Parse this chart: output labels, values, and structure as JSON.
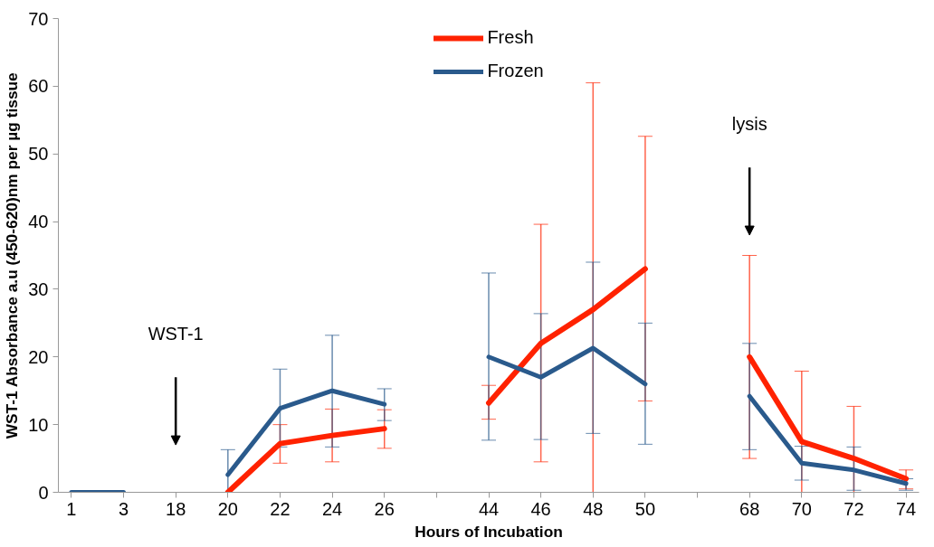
{
  "chart_data": {
    "type": "line",
    "xlabel": "Hours of Incubation",
    "ylabel": "WST-1 Absorbance a.u (450-620)nm per µg tissue",
    "categories": [
      "1",
      "3",
      "18",
      "20",
      "22",
      "24",
      "26",
      null,
      "44",
      "46",
      "48",
      "50",
      null,
      "68",
      "70",
      "72",
      "74"
    ],
    "series": [
      {
        "name": "Fresh",
        "color": "#ff2200",
        "values": [
          null,
          null,
          null,
          0,
          7.2,
          8.4,
          9.4,
          null,
          13.2,
          22,
          27,
          33,
          null,
          20,
          7.5,
          5,
          2
        ],
        "errors": [
          null,
          null,
          null,
          null,
          [
            4.3,
            10
          ],
          [
            4.5,
            12.3
          ],
          [
            6.5,
            12.2
          ],
          null,
          [
            10.8,
            15.8
          ],
          [
            4.5,
            39.6
          ],
          [
            0,
            60.5
          ],
          [
            13.5,
            52.6
          ],
          null,
          [
            5,
            35
          ],
          [
            0,
            17.9
          ],
          [
            0,
            12.7
          ],
          [
            0.5,
            3.3
          ]
        ]
      },
      {
        "name": "Frozen",
        "color": "#2a5a8c",
        "values": [
          0,
          0,
          null,
          2.6,
          12.4,
          15,
          13,
          null,
          20,
          17,
          21.3,
          16,
          null,
          14.2,
          4.3,
          3.3,
          1.3
        ],
        "errors": [
          null,
          null,
          null,
          [
            0,
            6.3
          ],
          [
            6.7,
            18.2
          ],
          [
            6.7,
            23.2
          ],
          [
            10.6,
            15.3
          ],
          null,
          [
            7.7,
            32.4
          ],
          [
            7.8,
            26.4
          ],
          [
            8.7,
            34
          ],
          [
            7.1,
            25
          ],
          null,
          [
            6.3,
            22
          ],
          [
            1.8,
            6.8
          ],
          [
            0.3,
            6.7
          ],
          [
            0.3,
            2
          ]
        ]
      }
    ],
    "ylim": [
      0,
      70
    ],
    "yticks": [
      0,
      10,
      20,
      30,
      40,
      50,
      60,
      70
    ],
    "grid": false,
    "legend": "top",
    "annotations": [
      "WST-1",
      "lysis"
    ]
  }
}
